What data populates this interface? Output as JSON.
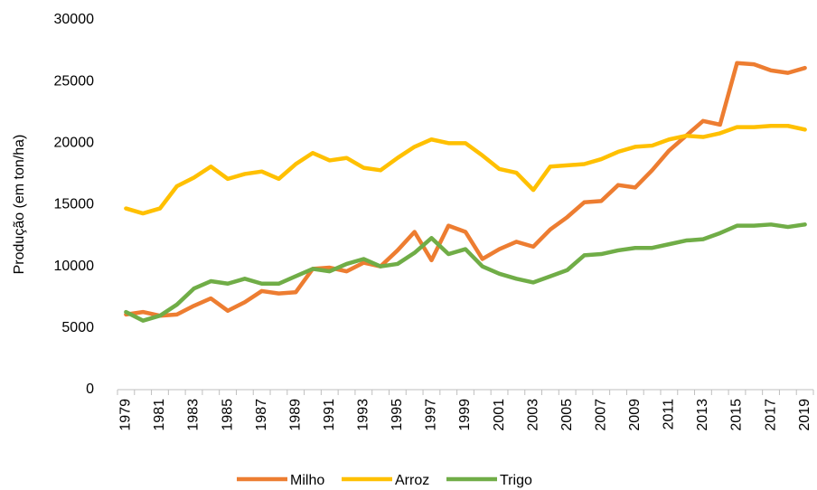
{
  "chart_data": {
    "type": "line",
    "y_label": "Produção (em ton/ha)",
    "categories": [
      "1979",
      null,
      "1981",
      null,
      "1983",
      null,
      "1985",
      null,
      "1987",
      null,
      "1989",
      null,
      "1991",
      null,
      "1993",
      null,
      "1995",
      null,
      "1997",
      null,
      "1999",
      null,
      "2001",
      null,
      "2003",
      null,
      "2005",
      null,
      "2007",
      null,
      "2009",
      null,
      "2011",
      null,
      "2013",
      null,
      "2015",
      null,
      "2017",
      null,
      "2019"
    ],
    "series": [
      {
        "name": "Milho",
        "color": "#ed7d31",
        "values": [
          6100,
          6300,
          6000,
          6100,
          6800,
          7400,
          6400,
          7100,
          8000,
          7800,
          7900,
          9800,
          9900,
          9600,
          10300,
          10000,
          11300,
          12800,
          10500,
          13300,
          12800,
          10600,
          11400,
          12000,
          11600,
          13000,
          14000,
          15200,
          15300,
          16600,
          16400,
          17800,
          19400,
          20600,
          21800,
          21500,
          26500,
          26400,
          25900,
          25700,
          26100
        ]
      },
      {
        "name": "Arroz",
        "color": "#ffc000",
        "values": [
          14700,
          14300,
          14700,
          16500,
          17200,
          18100,
          17100,
          17500,
          17700,
          17100,
          18300,
          19200,
          18600,
          18800,
          18000,
          17800,
          18800,
          19700,
          20300,
          20000,
          20000,
          19000,
          17900,
          17600,
          16200,
          18100,
          18200,
          18300,
          18700,
          19300,
          19700,
          19800,
          20300,
          20600,
          20500,
          20800,
          21300,
          21300,
          21400,
          21400,
          21100
        ]
      },
      {
        "name": "Trigo",
        "color": "#70ad47",
        "values": [
          6300,
          5600,
          6000,
          6900,
          8200,
          8800,
          8600,
          9000,
          8600,
          8600,
          9200,
          9800,
          9600,
          10200,
          10600,
          10000,
          10200,
          11100,
          12300,
          11000,
          11400,
          10000,
          9400,
          9000,
          8700,
          9200,
          9700,
          10900,
          11000,
          11300,
          11500,
          11500,
          11800,
          12100,
          12200,
          12700,
          13300,
          13300,
          13400,
          13200,
          13400
        ]
      }
    ],
    "ylim": [
      0,
      30000
    ],
    "yticks": [
      0,
      5000,
      10000,
      15000,
      20000,
      25000,
      30000
    ],
    "grid": false,
    "legend": "bottom"
  }
}
